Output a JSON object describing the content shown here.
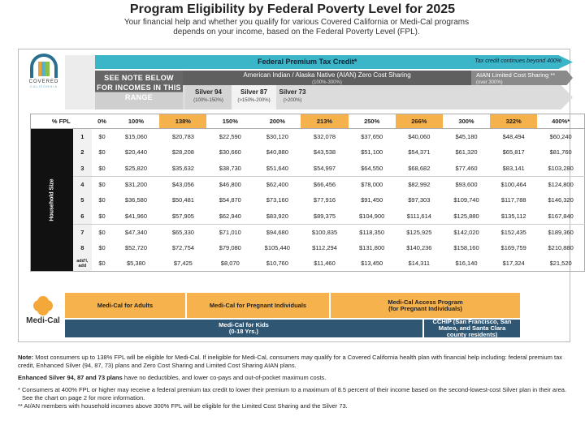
{
  "title": "Program Eligibility by Federal Poverty Level for 2025",
  "subtitle": "Your financial help and whether you qualify for various Covered California or Medi-Cal programs depends on your income, based on the Federal Poverty Level (FPL).",
  "logo": {
    "covered": "COVERED",
    "california": "CALIFORNIA",
    "medical": "Medi-Cal"
  },
  "colors": {
    "teal": "#3bb6c8",
    "orange": "#f5b14c",
    "navy": "#2f5673",
    "dark_gray": "#5f5f5f"
  },
  "bars": {
    "tax_credit": "Federal Premium Tax Credit*",
    "tax_credit_note": "Tax credit continues beyond 400%",
    "see_note": "SEE NOTE BELOW FOR INCOMES IN THIS RANGE",
    "aian_zero": "American Indian / Alaska Native (AIAN) Zero Cost Sharing",
    "aian_zero_range": "(100%-300%)",
    "aian_limited": "AIAN Limited Cost Sharing **",
    "aian_limited_range": "(over 300%)",
    "silver": [
      {
        "name": "Silver 94",
        "range": "(100%-150%)"
      },
      {
        "name": "Silver 87",
        "range": "(>150%-200%)"
      },
      {
        "name": "Silver 73",
        "range": "(>200%)"
      }
    ]
  },
  "table": {
    "side_label": "Household Size",
    "headers": [
      "% FPL",
      "0%",
      "100%",
      "138%",
      "150%",
      "200%",
      "213%",
      "250%",
      "266%",
      "300%",
      "322%",
      "400%*"
    ],
    "highlighted": [
      "138%",
      "213%",
      "266%",
      "322%"
    ],
    "rows": [
      [
        "1",
        "$0",
        "$15,060",
        "$20,783",
        "$22,590",
        "$30,120",
        "$32,078",
        "$37,650",
        "$40,060",
        "$45,180",
        "$48,494",
        "$60,240"
      ],
      [
        "2",
        "$0",
        "$20,440",
        "$28,208",
        "$30,660",
        "$40,880",
        "$43,538",
        "$51,100",
        "$54,371",
        "$61,320",
        "$65,817",
        "$81,760"
      ],
      [
        "3",
        "$0",
        "$25,820",
        "$35,632",
        "$38,730",
        "$51,640",
        "$54,997",
        "$64,550",
        "$68,682",
        "$77,460",
        "$83,141",
        "$103,280"
      ],
      [
        "4",
        "$0",
        "$31,200",
        "$43,056",
        "$46,800",
        "$62,400",
        "$66,456",
        "$78,000",
        "$82,992",
        "$93,600",
        "$100,464",
        "$124,800"
      ],
      [
        "5",
        "$0",
        "$36,580",
        "$50,481",
        "$54,870",
        "$73,160",
        "$77,916",
        "$91,450",
        "$97,303",
        "$109,740",
        "$117,788",
        "$146,320"
      ],
      [
        "6",
        "$0",
        "$41,960",
        "$57,905",
        "$62,940",
        "$83,920",
        "$89,375",
        "$104,900",
        "$111,614",
        "$125,880",
        "$135,112",
        "$167,840"
      ],
      [
        "7",
        "$0",
        "$47,340",
        "$65,330",
        "$71,010",
        "$94,680",
        "$100,835",
        "$118,350",
        "$125,925",
        "$142,020",
        "$152,435",
        "$189,360"
      ],
      [
        "8",
        "$0",
        "$52,720",
        "$72,754",
        "$79,080",
        "$105,440",
        "$112,294",
        "$131,800",
        "$140,236",
        "$158,160",
        "$169,759",
        "$210,880"
      ],
      [
        "add'l, add",
        "$0",
        "$5,380",
        "$7,425",
        "$8,070",
        "$10,760",
        "$11,460",
        "$13,450",
        "$14,311",
        "$16,140",
        "$17,324",
        "$21,520"
      ]
    ]
  },
  "medical": {
    "adults": "Medi-Cal for Adults",
    "pregnant": "Medi-Cal for Pregnant Individuals",
    "access": "Medi-Cal Access Program (for Pregnant Individuals)",
    "kids": "Medi-Cal for Kids",
    "kids_age": "(0-18 Yrs.)",
    "cchip": "CCHIP (San Francisco, San Mateo, and Santa Clara county residents)"
  },
  "notes": {
    "note_label": "Note:",
    "note": "Most consumers up to 138% FPL will be eligible for Medi-Cal. If ineligible for Medi-Cal, consumers may qualify for a Covered California health plan with financial help including: federal premium tax credit, Enhanced Silver (94, 87, 73) plans and Zero Cost Sharing and Limited Cost Sharing AIAN plans.",
    "enhanced_label": "Enhanced Silver 94, 87 and 73 plans",
    "enhanced": "have no deductibles, and lower co-pays and out-of-pocket maximum costs.",
    "star1": "* Consumers at 400% FPL or higher may receive a federal premium tax credit to lower their premium to a maximum of 8.5 percent of their income based on the second-lowest-cost Silver plan in their area. See the chart on page 2 for more information.",
    "star2": "** AI/AN members with household incomes above 300% FPL will be eligible for the Limited Cost Sharing and the Silver 73."
  }
}
